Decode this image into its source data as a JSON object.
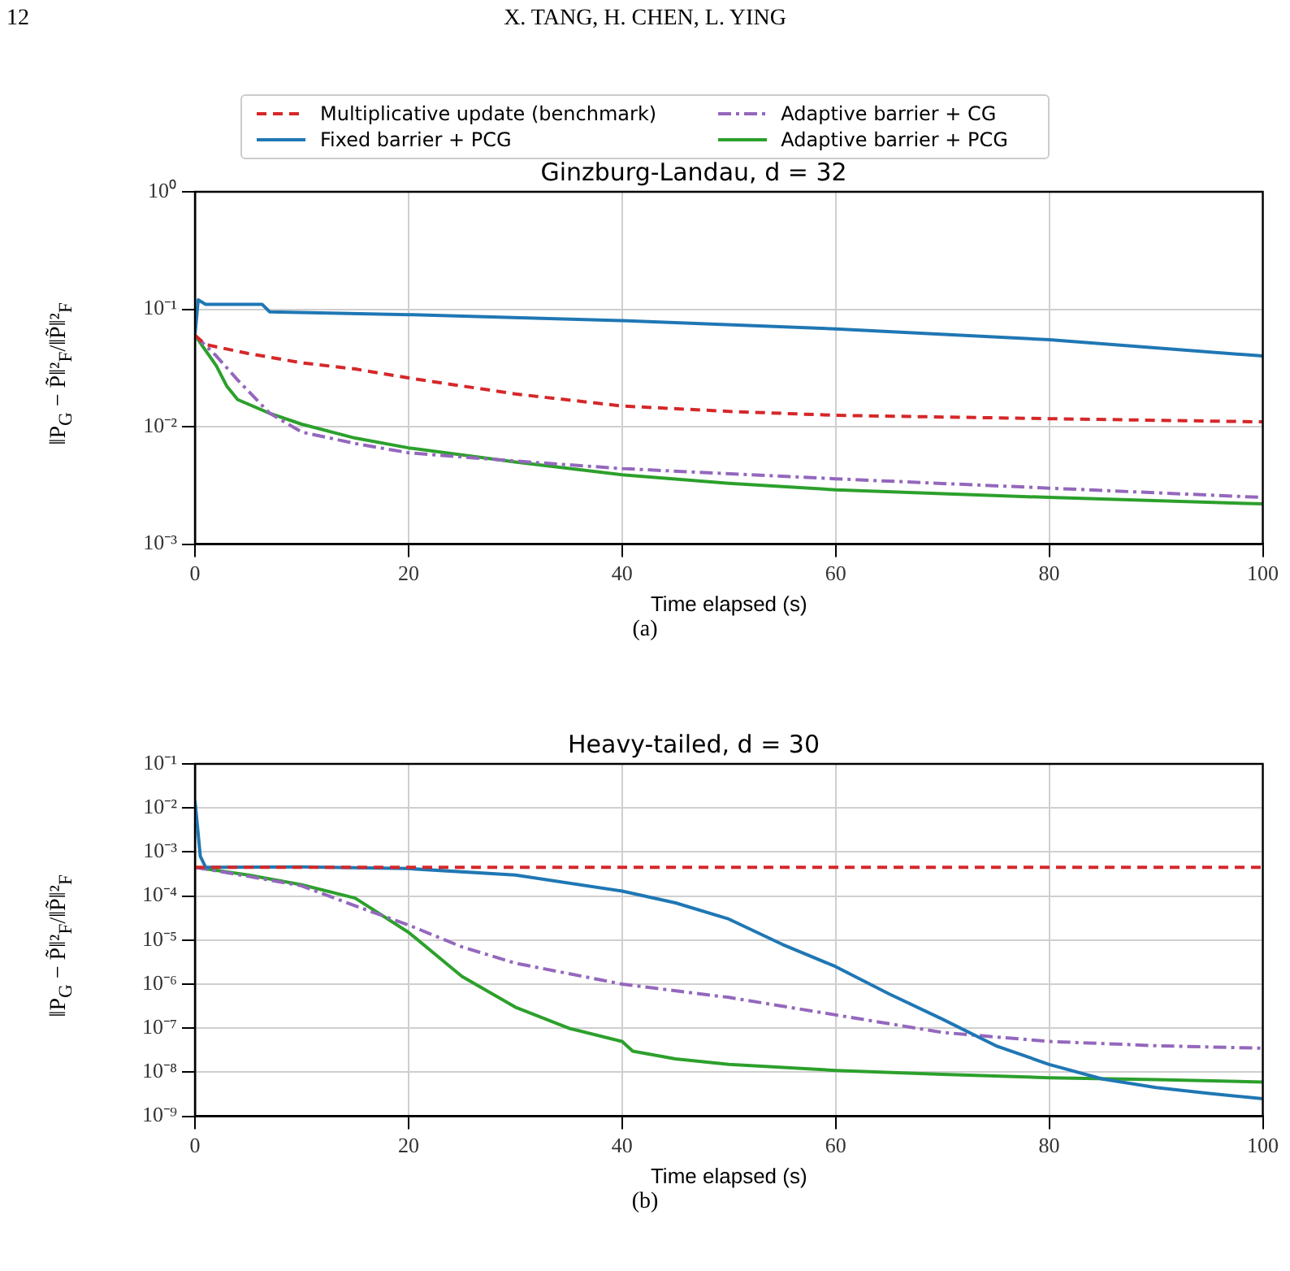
{
  "chart_data": [
    {
      "type": "line",
      "title": "Ginzburg-Landau, d = 32",
      "xlabel": "Time elapsed (s)",
      "ylabel": "‖P$_{G}$ − P̃‖²$_{F}$/‖P̃‖²$_{F}$",
      "annotations": [
        "12",
        "X. TANG, H. CHEN, L. YING",
        "(a)"
      ],
      "series": [
        {
          "name": "Multiplicative update (benchmark)",
          "color": "#d62728",
          "line_style": "dashed",
          "x": [
            0,
            1,
            5,
            10,
            15,
            20,
            30,
            40,
            50,
            60,
            80,
            100
          ],
          "values": [
            0.06,
            0.05,
            0.042,
            0.035,
            0.031,
            0.026,
            0.019,
            0.015,
            0.0135,
            0.0125,
            0.0117,
            0.011
          ]
        },
        {
          "name": "Fixed barrier + PCG",
          "color": "#1f77b4",
          "line_style": "solid",
          "x": [
            0,
            0.3,
            1,
            6.3,
            7,
            20,
            40,
            60,
            80,
            100
          ],
          "values": [
            0.06,
            0.12,
            0.11,
            0.11,
            0.095,
            0.09,
            0.08,
            0.068,
            0.055,
            0.04
          ]
        },
        {
          "name": "Adaptive barrier + CG",
          "color": "#9467bd",
          "line_style": "dashdot",
          "x": [
            0,
            2,
            4,
            7,
            10,
            15,
            20,
            30,
            40,
            60,
            80,
            100
          ],
          "values": [
            0.06,
            0.04,
            0.025,
            0.013,
            0.009,
            0.0072,
            0.006,
            0.0051,
            0.0044,
            0.0036,
            0.003,
            0.0025
          ]
        },
        {
          "name": "Adaptive barrier + PCG",
          "color": "#2ca02c",
          "line_style": "solid",
          "x": [
            0,
            2,
            3,
            4,
            7,
            10,
            15,
            20,
            30,
            40,
            50,
            60,
            80,
            100
          ],
          "values": [
            0.06,
            0.033,
            0.022,
            0.017,
            0.013,
            0.0105,
            0.008,
            0.0066,
            0.005,
            0.0039,
            0.0033,
            0.0029,
            0.0025,
            0.0022
          ]
        }
      ],
      "xlim": [
        0,
        100
      ],
      "xticks": [
        0,
        20,
        40,
        60,
        80,
        100
      ],
      "ylim": [
        0.001,
        1
      ],
      "yticks": [
        {
          "value": 1,
          "label": "10⁰"
        },
        {
          "value": 0.1,
          "label": "10⁻¹"
        },
        {
          "value": 0.01,
          "label": "10⁻²"
        },
        {
          "value": 0.001,
          "label": "10⁻³"
        }
      ],
      "log": "y",
      "grid": true,
      "legend": "top",
      "marker": "none"
    },
    {
      "type": "line",
      "title": "Heavy-tailed, d = 30",
      "xlabel": "Time elapsed (s)",
      "ylabel": "‖P$_{G}$ − P̃‖²$_{F}$/‖P̃‖²$_{F}$",
      "annotations": [
        "(b)"
      ],
      "series": [
        {
          "color": "#d62728",
          "line_style": "dashed",
          "x": [
            0,
            100
          ],
          "values": [
            0.00045,
            0.00045
          ]
        },
        {
          "color": "#1f77b4",
          "line_style": "solid",
          "x": [
            0,
            0.5,
            1,
            10,
            20,
            30,
            40,
            45,
            50,
            55,
            60,
            65,
            70,
            75,
            80,
            85,
            90,
            95,
            100
          ],
          "values": [
            0.015,
            0.0008,
            0.00045,
            0.00046,
            0.00042,
            0.0003,
            0.00013,
            7e-05,
            3e-05,
            8e-06,
            2.5e-06,
            6e-07,
            1.6e-07,
            4e-08,
            1.5e-08,
            7e-09,
            4.5e-09,
            3.3e-09,
            2.5e-09
          ]
        },
        {
          "color": "#9467bd",
          "line_style": "dashdot",
          "x": [
            0,
            5,
            10,
            15,
            20,
            25,
            30,
            40,
            50,
            60,
            70,
            80,
            90,
            100
          ],
          "values": [
            0.00045,
            0.00028,
            0.00017,
            6e-05,
            2.2e-05,
            7e-06,
            3e-06,
            1e-06,
            5e-07,
            2e-07,
            8e-08,
            5e-08,
            4e-08,
            3.5e-08
          ]
        },
        {
          "color": "#2ca02c",
          "line_style": "solid",
          "x": [
            0,
            5,
            10,
            15,
            20,
            25,
            30,
            35,
            40,
            41,
            45,
            50,
            60,
            70,
            80,
            90,
            100
          ],
          "values": [
            0.00045,
            0.0003,
            0.00018,
            9e-05,
            1.5e-05,
            1.5e-06,
            3e-07,
            1e-07,
            5e-08,
            3e-08,
            2e-08,
            1.5e-08,
            1.1e-08,
            9e-09,
            7.5e-09,
            6.8e-09,
            6e-09
          ]
        }
      ],
      "xlim": [
        0,
        100
      ],
      "xticks": [
        0,
        20,
        40,
        60,
        80,
        100
      ],
      "ylim": [
        1e-09,
        0.1
      ],
      "yticks": [
        {
          "value": 0.1,
          "label": "10⁻¹"
        },
        {
          "value": 0.01,
          "label": "10⁻²"
        },
        {
          "value": 0.001,
          "label": "10⁻³"
        },
        {
          "value": 0.0001,
          "label": "10⁻⁴"
        },
        {
          "value": 1e-05,
          "label": "10⁻⁵"
        },
        {
          "value": 1e-06,
          "label": "10⁻⁶"
        },
        {
          "value": 1e-07,
          "label": "10⁻⁷"
        },
        {
          "value": 1e-08,
          "label": "10⁻⁸"
        },
        {
          "value": 1e-09,
          "label": "10⁻⁹"
        }
      ],
      "log": "y",
      "grid": true,
      "legend": false,
      "marker": "none"
    }
  ]
}
